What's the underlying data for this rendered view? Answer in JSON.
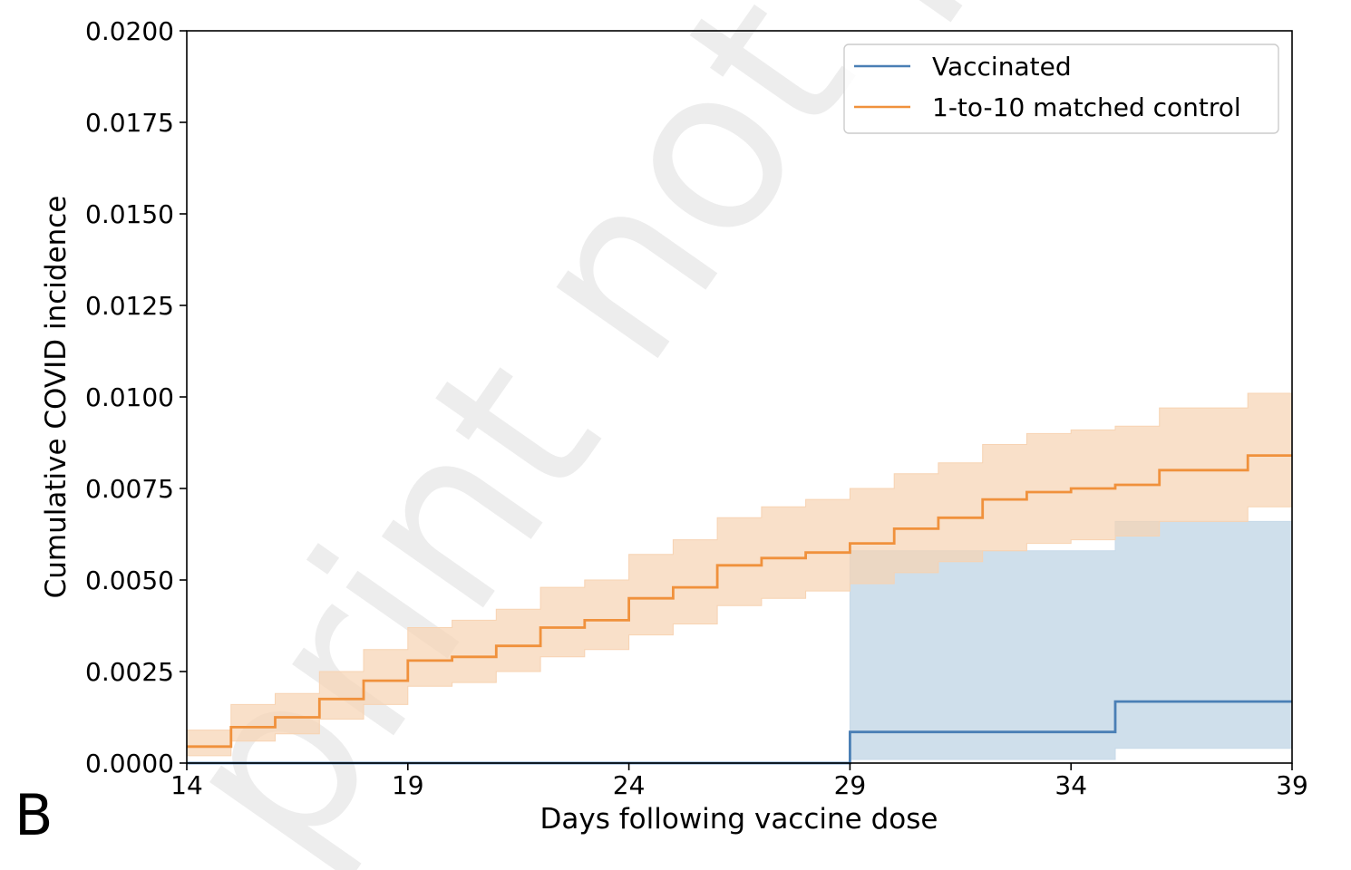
{
  "panel_label": "B",
  "watermark": "print not peer",
  "colors": {
    "vaccinated": "#4a7fb5",
    "vaccinated_fill": "#c7d9e8",
    "control": "#f0913c",
    "control_fill": "#f7d3b2"
  },
  "chart_data": {
    "type": "line",
    "title": "",
    "xlabel": "Days following vaccine dose",
    "ylabel": "Cumulative COVID incidence",
    "xlim": [
      14,
      39
    ],
    "ylim": [
      0,
      0.02
    ],
    "xticks": [
      14,
      19,
      24,
      29,
      34,
      39
    ],
    "yticks": [
      "0.0000",
      "0.0025",
      "0.0050",
      "0.0075",
      "0.0100",
      "0.0125",
      "0.0150",
      "0.0175",
      "0.0200"
    ],
    "grid": false,
    "legend_position": "top-right",
    "series": [
      {
        "name": "Vaccinated",
        "step": true,
        "x": [
          14,
          29,
          35,
          39
        ],
        "y": [
          0.0,
          0.00085,
          0.00168,
          0.00168
        ],
        "lower": [
          0.0,
          0.0001,
          0.0004,
          0.0004
        ],
        "upper": [
          0.0,
          0.0058,
          0.0066,
          0.0066
        ]
      },
      {
        "name": "1-to-10 matched control",
        "step": true,
        "x": [
          14,
          15,
          16,
          17,
          18,
          19,
          20,
          21,
          22,
          23,
          24,
          25,
          26,
          27,
          28,
          29,
          30,
          31,
          32,
          33,
          34,
          35,
          36,
          37,
          38,
          39
        ],
        "y": [
          0.00045,
          0.00098,
          0.00125,
          0.00175,
          0.00225,
          0.0028,
          0.0029,
          0.0032,
          0.0037,
          0.0039,
          0.0045,
          0.0048,
          0.0054,
          0.0056,
          0.00575,
          0.006,
          0.0064,
          0.0067,
          0.0072,
          0.0074,
          0.0075,
          0.0076,
          0.008,
          0.008,
          0.0084,
          0.0084
        ],
        "lower": [
          0.0002,
          0.0006,
          0.0008,
          0.0012,
          0.0016,
          0.0021,
          0.0022,
          0.0025,
          0.0029,
          0.0031,
          0.0035,
          0.0038,
          0.0043,
          0.0045,
          0.0047,
          0.0049,
          0.0052,
          0.0055,
          0.0058,
          0.006,
          0.0061,
          0.0062,
          0.0066,
          0.0066,
          0.007,
          0.007
        ],
        "upper": [
          0.0009,
          0.0016,
          0.0019,
          0.0025,
          0.0031,
          0.0037,
          0.0039,
          0.0042,
          0.0048,
          0.005,
          0.0057,
          0.0061,
          0.0067,
          0.007,
          0.0072,
          0.0075,
          0.0079,
          0.0082,
          0.0087,
          0.009,
          0.0091,
          0.0092,
          0.0097,
          0.0097,
          0.0101,
          0.0101
        ]
      }
    ]
  }
}
